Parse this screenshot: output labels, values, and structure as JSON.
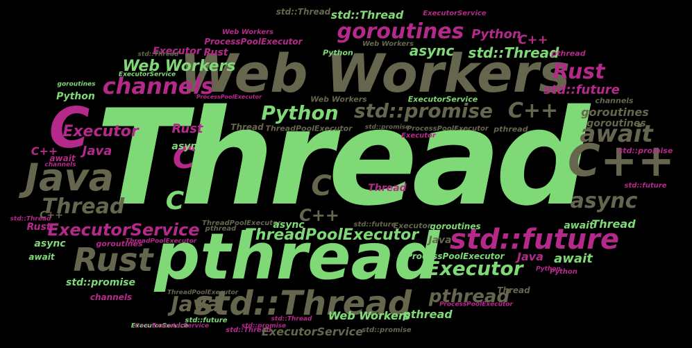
{
  "colors": {
    "background": "#000000",
    "green": "#7fd977",
    "gray": "#66664f",
    "pink": "#b5298a"
  },
  "words": [
    {
      "text": "Thread",
      "color": "green",
      "size": "xxl"
    },
    {
      "text": "Web Workers",
      "color": "gray",
      "size": "xl"
    },
    {
      "text": "pthread",
      "color": "green",
      "size": "xl"
    },
    {
      "text": "C++",
      "color": "gray",
      "size": "l"
    },
    {
      "text": "C",
      "color": "pink",
      "size": "l"
    },
    {
      "text": "Java",
      "color": "gray",
      "size": "l"
    },
    {
      "text": "std::Thread",
      "color": "gray",
      "size": "l"
    },
    {
      "text": "std::future",
      "color": "pink",
      "size": "l"
    },
    {
      "text": "goroutines",
      "color": "pink",
      "size": "m"
    },
    {
      "text": "channels",
      "color": "pink",
      "size": "m"
    },
    {
      "text": "Python",
      "color": "green",
      "size": "m"
    },
    {
      "text": "std::promise",
      "color": "gray",
      "size": "m"
    },
    {
      "text": "C++",
      "color": "gray",
      "size": "m"
    },
    {
      "text": "await",
      "color": "gray",
      "size": "m"
    },
    {
      "text": "async",
      "color": "gray",
      "size": "m"
    },
    {
      "text": "Rust",
      "color": "gray",
      "size": "l"
    },
    {
      "text": "Thread",
      "color": "gray",
      "size": "m"
    },
    {
      "text": "ExecutorService",
      "color": "pink",
      "size": "m"
    },
    {
      "text": "ThreadPoolExecutor",
      "color": "green",
      "size": "m"
    },
    {
      "text": "Executor",
      "color": "green",
      "size": "m"
    },
    {
      "text": "Java",
      "color": "gray",
      "size": "m"
    },
    {
      "text": "pthread",
      "color": "gray",
      "size": "m"
    },
    {
      "text": "Web Workers",
      "color": "green",
      "size": "m"
    },
    {
      "text": "Rust",
      "color": "pink",
      "size": "m"
    },
    {
      "text": "std::future",
      "color": "pink",
      "size": "s"
    },
    {
      "text": "std::Thread",
      "color": "green",
      "size": "m"
    },
    {
      "text": "async",
      "color": "green",
      "size": "m"
    },
    {
      "text": "Executor",
      "color": "pink",
      "size": "m"
    },
    {
      "text": "Rust",
      "color": "pink",
      "size": "s"
    },
    {
      "text": "Java",
      "color": "pink",
      "size": "s"
    },
    {
      "text": "C",
      "color": "pink",
      "size": "m"
    },
    {
      "text": "C",
      "color": "green",
      "size": "m"
    },
    {
      "text": "C",
      "color": "gray",
      "size": "m"
    },
    {
      "text": "C++",
      "color": "gray",
      "size": "s"
    },
    {
      "text": "goroutines",
      "color": "gray",
      "size": "s"
    },
    {
      "text": "Python",
      "color": "pink",
      "size": "s"
    },
    {
      "text": "C++",
      "color": "pink",
      "size": "s"
    },
    {
      "text": "Executor",
      "color": "pink",
      "size": "xs"
    },
    {
      "text": "Rust",
      "color": "pink",
      "size": "xs"
    },
    {
      "text": "ProcessPoolExecutor",
      "color": "pink",
      "size": "xs"
    },
    {
      "text": "Web Workers",
      "color": "green",
      "size": "m"
    },
    {
      "text": "std::Thread",
      "color": "gray",
      "size": "xs"
    },
    {
      "text": "std::Thread",
      "color": "green",
      "size": "s"
    },
    {
      "text": "ExecutorService",
      "color": "pink",
      "size": "xxs"
    },
    {
      "text": "Web Workers",
      "color": "pink",
      "size": "xxs"
    },
    {
      "text": "Web Workers",
      "color": "gray",
      "size": "xxs"
    },
    {
      "text": "Python",
      "color": "green",
      "size": "xxs"
    },
    {
      "text": "pthread",
      "color": "pink",
      "size": "xxs"
    },
    {
      "text": "goroutines",
      "color": "green",
      "size": "xxs"
    },
    {
      "text": "ExecutorService",
      "color": "green",
      "size": "xxs"
    },
    {
      "text": "Python",
      "color": "green",
      "size": "xs"
    },
    {
      "text": "ProcessPoolExecutor",
      "color": "pink",
      "size": "xxs"
    },
    {
      "text": "Web Workers",
      "color": "gray",
      "size": "xxs"
    },
    {
      "text": "ExecutorService",
      "color": "green",
      "size": "xxs"
    },
    {
      "text": "channels",
      "color": "gray",
      "size": "xxs"
    },
    {
      "text": "goroutines",
      "color": "gray",
      "size": "xs"
    },
    {
      "text": "Thread",
      "color": "gray",
      "size": "xxs"
    },
    {
      "text": "ThreadPoolExecutor",
      "color": "gray",
      "size": "xxs"
    },
    {
      "text": "std::promise",
      "color": "gray",
      "size": "xxs"
    },
    {
      "text": "ProcessPoolExecutor",
      "color": "gray",
      "size": "xxs"
    },
    {
      "text": "pthread",
      "color": "gray",
      "size": "xxs"
    },
    {
      "text": "Executor",
      "color": "pink",
      "size": "xxs"
    },
    {
      "text": "std::promise",
      "color": "pink",
      "size": "xxs"
    },
    {
      "text": "std::future",
      "color": "pink",
      "size": "xxs"
    },
    {
      "text": "await",
      "color": "pink",
      "size": "xxs"
    },
    {
      "text": "async",
      "color": "green",
      "size": "xxs"
    },
    {
      "text": "C++",
      "color": "pink",
      "size": "xs"
    },
    {
      "text": "channels",
      "color": "pink",
      "size": "xxs"
    },
    {
      "text": "Thread",
      "color": "pink",
      "size": "xxs"
    },
    {
      "text": "C++",
      "color": "gray",
      "size": "xs"
    },
    {
      "text": "std::Thread",
      "color": "pink",
      "size": "xxs"
    },
    {
      "text": "ThreadPoolExecutor",
      "color": "gray",
      "size": "xxs"
    },
    {
      "text": "pthread",
      "color": "gray",
      "size": "xxs"
    },
    {
      "text": "async",
      "color": "green",
      "size": "xs"
    },
    {
      "text": "std::future",
      "color": "gray",
      "size": "xxs"
    },
    {
      "text": "Executor",
      "color": "gray",
      "size": "xxs"
    },
    {
      "text": "goroutines",
      "color": "green",
      "size": "xxs"
    },
    {
      "text": "Java",
      "color": "gray",
      "size": "xs"
    },
    {
      "text": "ProcessPoolExecutor",
      "color": "green",
      "size": "xxs"
    },
    {
      "text": "Rust",
      "color": "pink",
      "size": "xs"
    },
    {
      "text": "async",
      "color": "green",
      "size": "xs"
    },
    {
      "text": "goroutines",
      "color": "pink",
      "size": "xxs"
    },
    {
      "text": "ThreadPoolExecutor",
      "color": "pink",
      "size": "xxs"
    },
    {
      "text": "await",
      "color": "green",
      "size": "xs"
    },
    {
      "text": "std::promise",
      "color": "green",
      "size": "xs"
    },
    {
      "text": "channels",
      "color": "pink",
      "size": "xs"
    },
    {
      "text": "Java",
      "color": "pink",
      "size": "xs"
    },
    {
      "text": "await",
      "color": "green",
      "size": "xs"
    },
    {
      "text": "await",
      "color": "green",
      "size": "xs"
    },
    {
      "text": "Thread",
      "color": "green",
      "size": "xs"
    },
    {
      "text": "Python",
      "color": "pink",
      "size": "xxs"
    },
    {
      "text": "ProcessPoolExecutor",
      "color": "pink",
      "size": "xxs"
    },
    {
      "text": "ThreadPoolExecutor",
      "color": "gray",
      "size": "xxs"
    },
    {
      "text": "Web Workers",
      "color": "green",
      "size": "xs"
    },
    {
      "text": "pthread",
      "color": "green",
      "size": "xs"
    },
    {
      "text": "std::future",
      "color": "green",
      "size": "xxs"
    },
    {
      "text": "std::Thread",
      "color": "pink",
      "size": "xxs"
    },
    {
      "text": "std::promise",
      "color": "gray",
      "size": "xxs"
    },
    {
      "text": "ExecutorService",
      "color": "gray",
      "size": "xs"
    },
    {
      "text": "Thread",
      "color": "gray",
      "size": "xxs"
    },
    {
      "text": "std::Thread",
      "color": "gray",
      "size": "xxs"
    },
    {
      "text": "ExecutorService",
      "color": "green",
      "size": "xxs"
    },
    {
      "text": "Python",
      "color": "pink",
      "size": "xxs"
    },
    {
      "text": "std::promise",
      "color": "pink",
      "size": "xxs"
    },
    {
      "text": "std::Thread",
      "color": "pink",
      "size": "xxs"
    },
    {
      "text": "C++",
      "color": "pink",
      "size": "xxs"
    },
    {
      "text": "ExecutorService",
      "color": "pink",
      "size": "xxs"
    }
  ]
}
